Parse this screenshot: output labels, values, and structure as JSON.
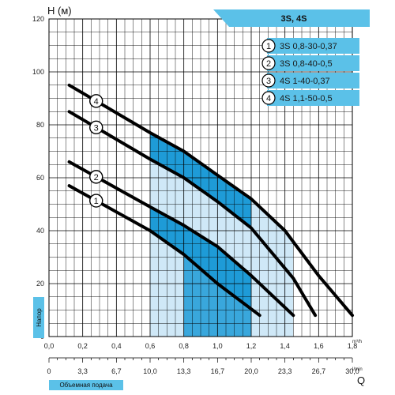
{
  "chart_data": {
    "type": "line",
    "title": "3S, 4S",
    "ylabel": "H (м)",
    "xlabel": "Q",
    "x_unit": "m³/h",
    "x2_unit": "l/min",
    "side_labels": {
      "y": "Напор",
      "x": "Объемная подача"
    },
    "xlim": [
      0,
      1.8
    ],
    "ylim": [
      0,
      120
    ],
    "x_ticks": [
      "0,0",
      "0,2",
      "0,4",
      "0,6",
      "0,8",
      "1,0",
      "1,2",
      "1,4",
      "1,6",
      "1,8"
    ],
    "x2_ticks": [
      "0",
      "3,3",
      "6,7",
      "10,0",
      "13,3",
      "16,7",
      "20,0",
      "23,3",
      "26,7",
      "30,0"
    ],
    "y_ticks": [
      "0",
      "20",
      "40",
      "60",
      "80",
      "100",
      "120"
    ],
    "grid": true,
    "legend_position": "top-right",
    "series": [
      {
        "name": "3S 0,8-30-0,37",
        "marker": "1",
        "x": [
          0.12,
          0.6,
          0.8,
          1.0,
          1.25
        ],
        "y": [
          57,
          40,
          31,
          20,
          8
        ]
      },
      {
        "name": "3S 0,8-40-0,5",
        "marker": "2",
        "x": [
          0.12,
          0.6,
          0.8,
          1.0,
          1.2,
          1.45
        ],
        "y": [
          66,
          49,
          42,
          34,
          23,
          8
        ]
      },
      {
        "name": "4S 1-40-0,37",
        "marker": "3",
        "x": [
          0.12,
          0.6,
          0.8,
          1.0,
          1.2,
          1.45,
          1.58
        ],
        "y": [
          85,
          67,
          60,
          51,
          41,
          22,
          8
        ]
      },
      {
        "name": "4S 1,1-50-0,5",
        "marker": "4",
        "x": [
          0.12,
          0.6,
          0.8,
          1.0,
          1.2,
          1.4,
          1.6,
          1.8
        ],
        "y": [
          95,
          77,
          70,
          61,
          52,
          40,
          23,
          8
        ]
      }
    ],
    "colors": {
      "series_line": "#000000",
      "band_light": "#cfe8f7",
      "band_dark": "#1e9bd7",
      "legend_fill": "#5bc1e8",
      "title_fill": "#5bc1e8",
      "side_label_fill": "#5bc1e8",
      "grid": "#000000"
    }
  }
}
